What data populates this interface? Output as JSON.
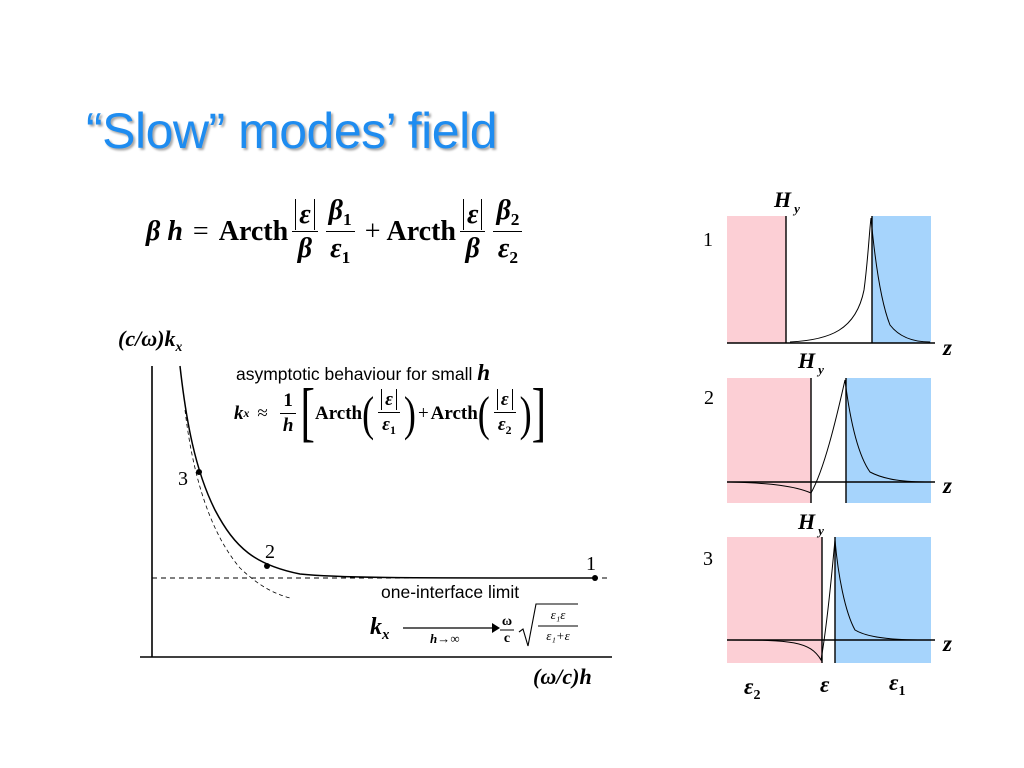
{
  "slide": {
    "title": "“Slow” modes’ field",
    "main_formula": {
      "lhs": "β h",
      "eq": "=",
      "fn": "Arcth",
      "abs_eps": "ε",
      "beta": "β",
      "beta1": "β",
      "beta1_sub": "1",
      "eps1": "ε",
      "eps1_sub": "1",
      "plus": "+",
      "beta2": "β",
      "beta2_sub": "2",
      "eps2": "ε",
      "eps2_sub": "2"
    },
    "asymptotic": {
      "label": "asymptotic behaviour for small",
      "label_var": "h",
      "kx": "k",
      "kx_sub": "x",
      "approx": "≈",
      "one": "1",
      "h": "h",
      "fn": "Arcth",
      "eps": "ε",
      "eps1": "ε",
      "eps1_sub": "1",
      "eps2": "ε",
      "eps2_sub": "2",
      "plus": "+"
    },
    "limit": {
      "label": "one-interface limit",
      "kx": "k",
      "kx_sub": "x",
      "arrow_label": "h→∞",
      "omega": "ω",
      "c": "c",
      "root_num": "ε₁ε",
      "root_den": "ε₁+ε"
    },
    "dispersion_plot": {
      "ylabel": "(c/ω)k",
      "ylabel_sub": "x",
      "xlabel": "(ω/c)h",
      "points": [
        {
          "label": "3",
          "x": 0.3,
          "y": 2.1
        },
        {
          "label": "2",
          "x": 0.9,
          "y": 1.08
        },
        {
          "label": "1",
          "x": 3.4,
          "y": 1.0
        }
      ]
    },
    "field_panels": {
      "field_label": "H",
      "field_sub": "y",
      "axis_label": "z",
      "panels": [
        {
          "label": "1"
        },
        {
          "label": "2"
        },
        {
          "label": "3"
        }
      ],
      "media": [
        {
          "label": "ε",
          "sub": "2"
        },
        {
          "label": "ε",
          "sub": ""
        },
        {
          "label": "ε",
          "sub": "1"
        }
      ],
      "colors": {
        "left_medium": "#fccfd5",
        "right_medium": "#a6d4fc"
      }
    }
  }
}
